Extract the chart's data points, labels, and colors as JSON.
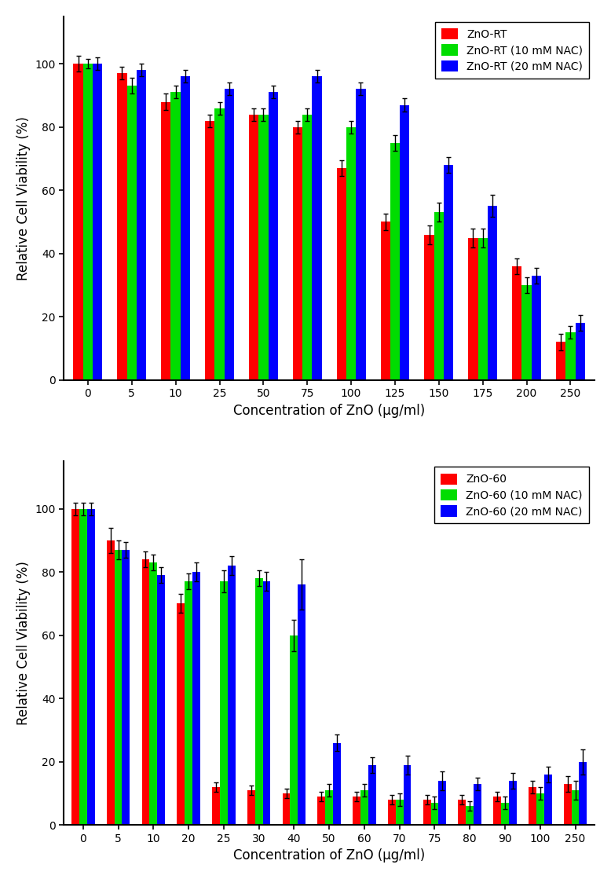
{
  "chart1": {
    "xlabel": "Concentration of ZnO (μg/ml)",
    "ylabel": "Relative Cell Viability (%)",
    "legend_labels": [
      "ZnO-RT",
      "ZnO-RT (10 mM NAC)",
      "ZnO-RT (20 mM NAC)"
    ],
    "colors": [
      "#ff0000",
      "#00dd00",
      "#0000ff"
    ],
    "categories": [
      "0",
      "5",
      "10",
      "25",
      "50",
      "75",
      "100",
      "125",
      "150",
      "175",
      "200",
      "250"
    ],
    "values_red": [
      100,
      97,
      88,
      82,
      84,
      80,
      67,
      50,
      46,
      45,
      36,
      12
    ],
    "values_green": [
      100,
      93,
      91,
      86,
      84,
      84,
      80,
      75,
      53,
      45,
      30,
      15
    ],
    "values_blue": [
      100,
      98,
      96,
      92,
      91,
      96,
      92,
      87,
      68,
      55,
      33,
      18
    ],
    "err_red": [
      2.5,
      2.0,
      2.5,
      2.0,
      2.0,
      2.0,
      2.5,
      2.5,
      3.0,
      3.0,
      2.5,
      2.5
    ],
    "err_green": [
      1.5,
      2.5,
      2.0,
      2.0,
      2.0,
      2.0,
      2.0,
      2.5,
      3.0,
      3.0,
      2.5,
      2.0
    ],
    "err_blue": [
      2.0,
      2.0,
      2.0,
      2.0,
      2.0,
      2.0,
      2.0,
      2.0,
      2.5,
      3.5,
      2.5,
      2.5
    ],
    "ylim": [
      0,
      115
    ],
    "yticks": [
      0,
      20,
      40,
      60,
      80,
      100
    ]
  },
  "chart2": {
    "xlabel": "Concentration of ZnO (μg/ml)",
    "ylabel": "Relative Cell Viability (%)",
    "legend_labels": [
      "ZnO-60",
      "ZnO-60 (10 mM NAC)",
      "ZnO-60 (20 mM NAC)"
    ],
    "colors": [
      "#ff0000",
      "#00dd00",
      "#0000ff"
    ],
    "categories": [
      "0",
      "5",
      "10",
      "20",
      "25",
      "30",
      "40",
      "50",
      "60",
      "70",
      "75",
      "80",
      "90",
      "100",
      "250"
    ],
    "values_red": [
      100,
      90,
      84,
      70,
      12,
      11,
      10,
      9,
      9,
      8,
      8,
      8,
      9,
      12,
      13
    ],
    "values_green": [
      100,
      87,
      83,
      77,
      77,
      78,
      60,
      11,
      11,
      8,
      7,
      6,
      7,
      10,
      11
    ],
    "values_blue": [
      100,
      87,
      79,
      80,
      82,
      77,
      76,
      26,
      19,
      19,
      14,
      13,
      14,
      16,
      20
    ],
    "err_red": [
      2.0,
      4.0,
      2.5,
      3.0,
      1.5,
      1.5,
      1.5,
      1.5,
      1.5,
      1.5,
      1.5,
      1.5,
      1.5,
      2.0,
      2.5
    ],
    "err_green": [
      2.0,
      3.0,
      2.5,
      2.5,
      3.5,
      2.5,
      5.0,
      2.0,
      2.0,
      2.0,
      2.0,
      1.5,
      2.0,
      2.0,
      3.0
    ],
    "err_blue": [
      2.0,
      2.5,
      2.5,
      3.0,
      3.0,
      3.0,
      8.0,
      2.5,
      2.5,
      3.0,
      3.0,
      2.0,
      2.5,
      2.5,
      4.0
    ],
    "ylim": [
      0,
      115
    ],
    "yticks": [
      0,
      20,
      40,
      60,
      80,
      100
    ]
  },
  "bar_width": 0.22,
  "figure_bg": "#ffffff",
  "legend_fontsize": 10,
  "axis_label_fontsize": 12,
  "tick_fontsize": 10
}
